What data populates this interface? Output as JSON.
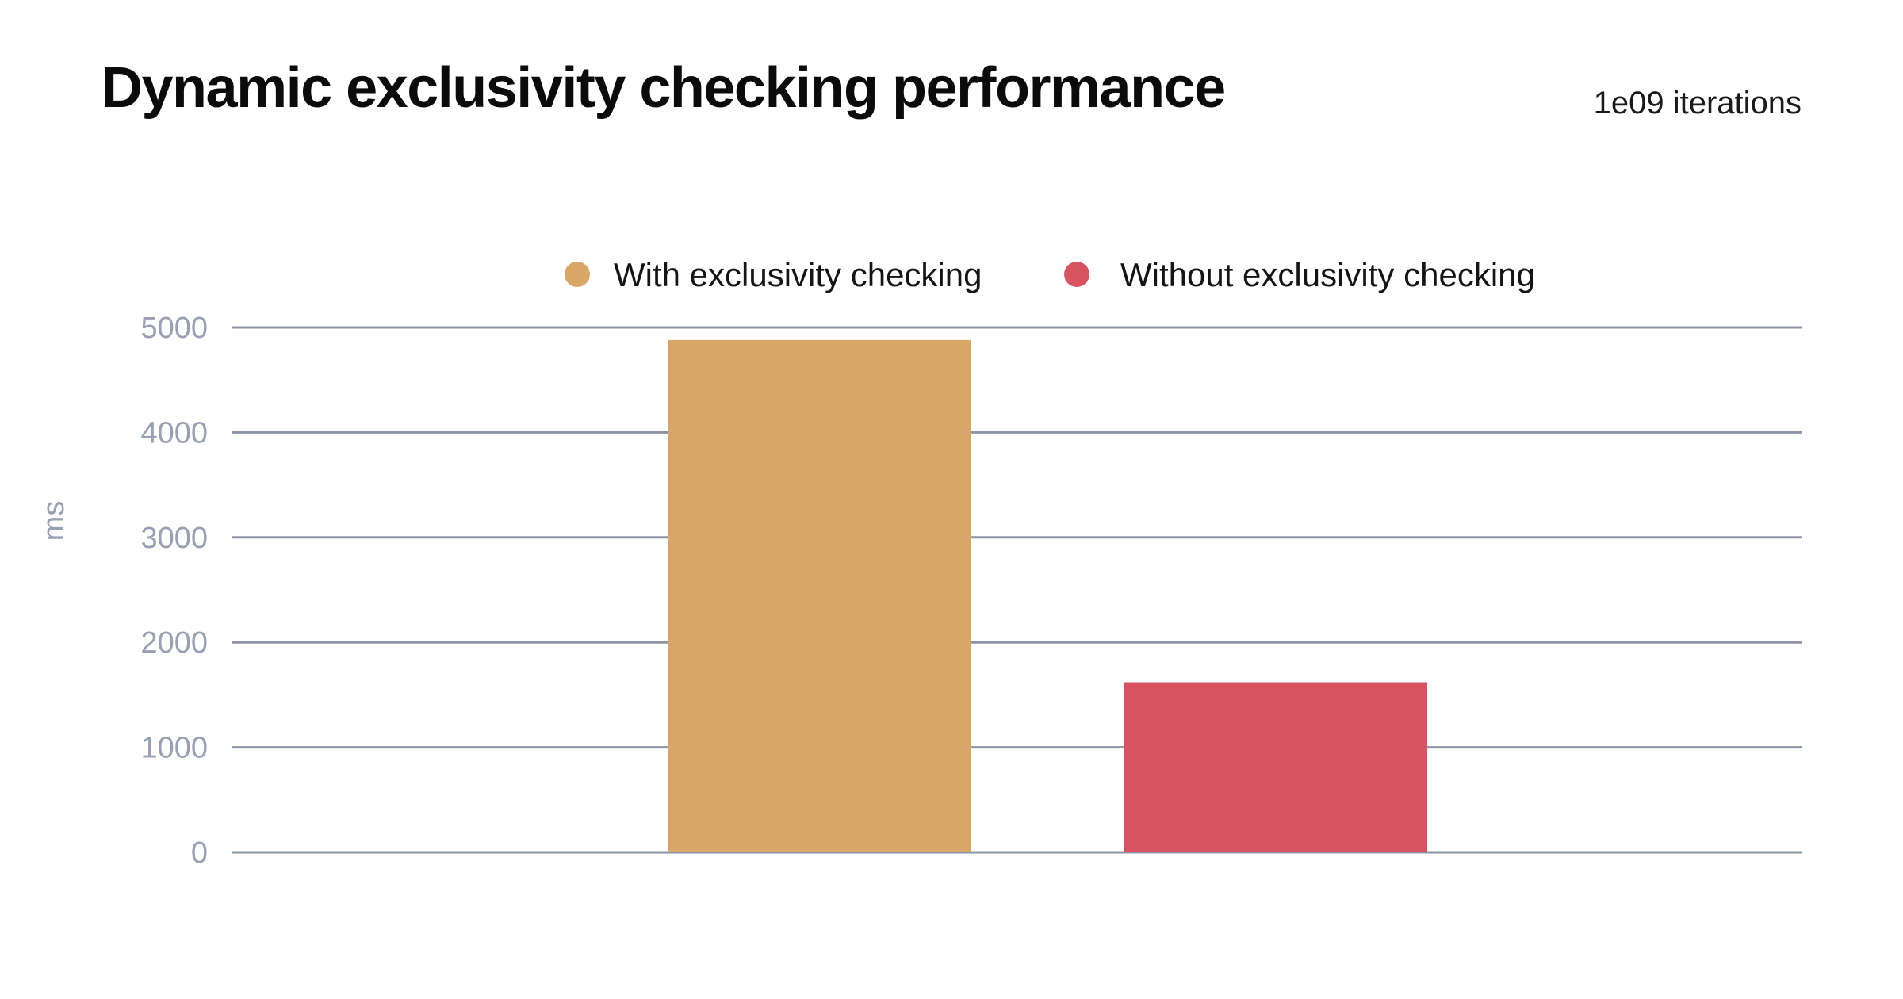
{
  "chart_data": {
    "type": "bar",
    "title": "Dynamic exclusivity checking performance",
    "subtitle": "1e09 iterations",
    "xlabel": "",
    "ylabel": "ms",
    "ylim": [
      0,
      5000
    ],
    "yticks": [
      0,
      1000,
      2000,
      3000,
      4000,
      5000
    ],
    "grid": true,
    "legend_placement": "top-center",
    "categories": [
      ""
    ],
    "series": [
      {
        "name": "With exclusivity checking",
        "values": [
          4880
        ],
        "color": "#d8a666"
      },
      {
        "name": "Without exclusivity checking",
        "values": [
          1620
        ],
        "color": "#d85362"
      }
    ],
    "colors": {
      "grid": "#8c95a6",
      "tick_text": "#98a1b3",
      "title": "#0b0b0b"
    }
  }
}
